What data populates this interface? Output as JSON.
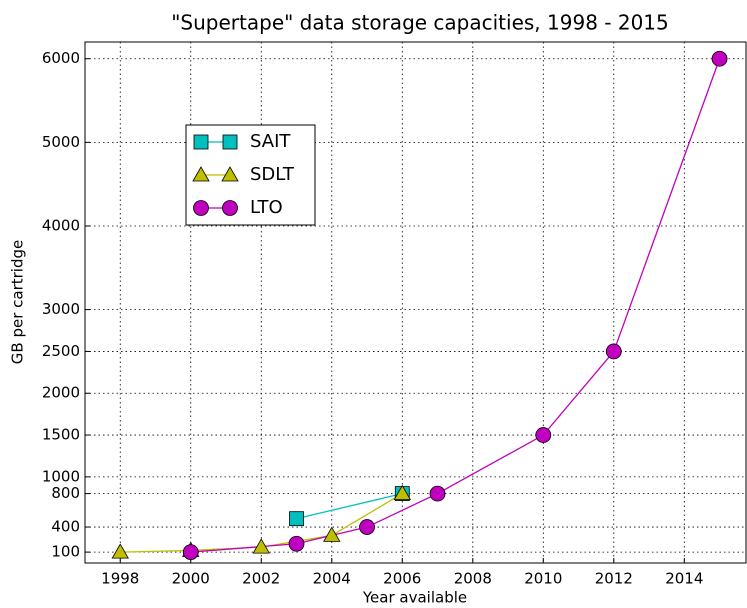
{
  "chart_data": {
    "type": "line",
    "title": "\"Supertape\" data storage capacities, 1998 - 2015",
    "xlabel": "Year available",
    "ylabel": "GB per cartridge",
    "xlim": [
      1997,
      2015.75
    ],
    "xticks": [
      1998,
      2000,
      2002,
      2004,
      2006,
      2008,
      2010,
      2012,
      2014
    ],
    "ylim": [
      -30,
      6200
    ],
    "yticks": [
      100,
      400,
      800,
      1000,
      1500,
      2000,
      2500,
      3000,
      4000,
      5000,
      6000
    ],
    "grid": true,
    "legend": "upper left",
    "series": [
      {
        "name": "SAIT",
        "color": "#00bfbf",
        "marker": "square",
        "x": [
          2003,
          2006
        ],
        "values": [
          500,
          800
        ]
      },
      {
        "name": "SDLT",
        "color": "#bfbf00",
        "marker": "triangle",
        "x": [
          1998,
          2000,
          2002,
          2004,
          2006
        ],
        "values": [
          100,
          120,
          160,
          300,
          800
        ]
      },
      {
        "name": "LTO",
        "color": "#bf00bf",
        "marker": "circle",
        "x": [
          2000,
          2003,
          2005,
          2007,
          2010,
          2012,
          2015
        ],
        "values": [
          100,
          200,
          400,
          800,
          1500,
          2500,
          6000
        ]
      }
    ]
  }
}
